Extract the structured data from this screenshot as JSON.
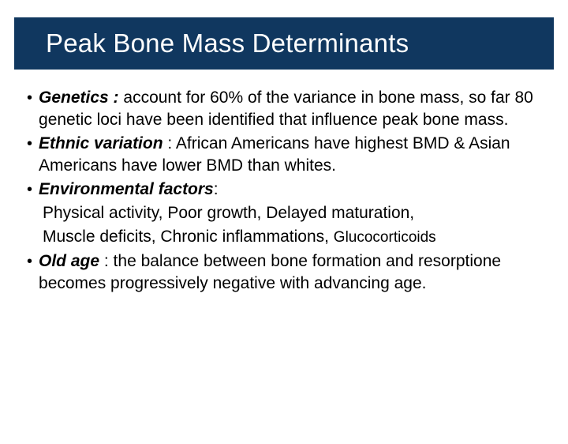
{
  "title": "Peak Bone Mass Determinants",
  "colors": {
    "title_band_bg": "#10375f",
    "title_text": "#ffffff",
    "body_text": "#000000",
    "slide_bg": "#ffffff"
  },
  "typography": {
    "title_fontsize": 33,
    "body_fontsize": 21,
    "line_height": 28,
    "font_family": "Arial"
  },
  "bullets": [
    {
      "lead": "Genetics :",
      "text": " account for 60% of the variance in bone mass, so far 80 genetic loci have been identified that influence peak bone mass."
    },
    {
      "lead": "Ethnic variation",
      "text": " : African Americans have highest BMD & Asian Americans have lower BMD than whites."
    },
    {
      "lead": "Environmental factors",
      "text": ":"
    },
    {
      "lead": "Old age",
      "text": " : the balance between bone formation and resorptione becomes progressively negative with advancing age."
    }
  ],
  "env_lines": [
    "Physical activity,  Poor growth,  Delayed maturation,",
    "Muscle deficits, Chronic inflammations,  ",
    "Glucocorticoids"
  ]
}
